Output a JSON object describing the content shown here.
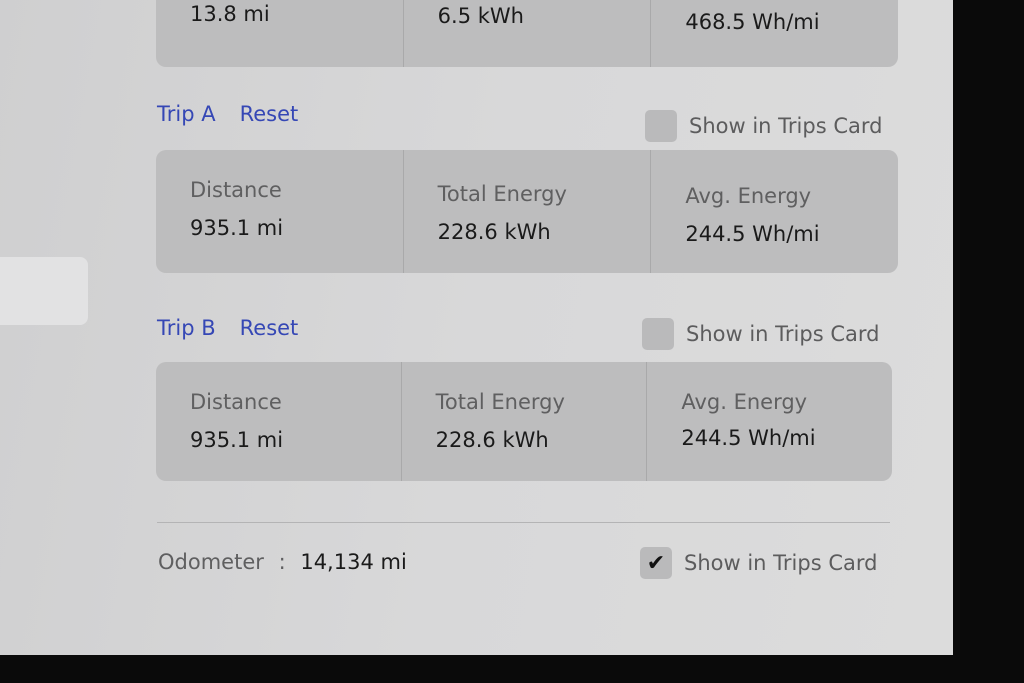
{
  "top_card": {
    "distance": "13.8 mi",
    "total_energy": "6.5 kWh",
    "avg_energy": "468.5 Wh/mi"
  },
  "trip_a": {
    "title": "Trip A",
    "reset": "Reset",
    "show_label": "Show in Trips Card",
    "show_checked": false,
    "distance_label": "Distance",
    "distance": "935.1 mi",
    "energy_label": "Total Energy",
    "energy": "228.6 kWh",
    "avg_label": "Avg. Energy",
    "avg": "244.5 Wh/mi"
  },
  "trip_b": {
    "title": "Trip B",
    "reset": "Reset",
    "show_label": "Show in Trips Card",
    "show_checked": false,
    "distance_label": "Distance",
    "distance": "935.1 mi",
    "energy_label": "Total Energy",
    "energy": "228.6 kWh",
    "avg_label": "Avg. Energy",
    "avg": "244.5 Wh/mi"
  },
  "odometer": {
    "label": "Odometer",
    "separator": ":",
    "value": "14,134 mi",
    "show_label": "Show in Trips Card",
    "show_checked": true,
    "check_glyph": "✔"
  },
  "colors": {
    "accent": "#3547b5",
    "card": "#bdbdbe"
  }
}
